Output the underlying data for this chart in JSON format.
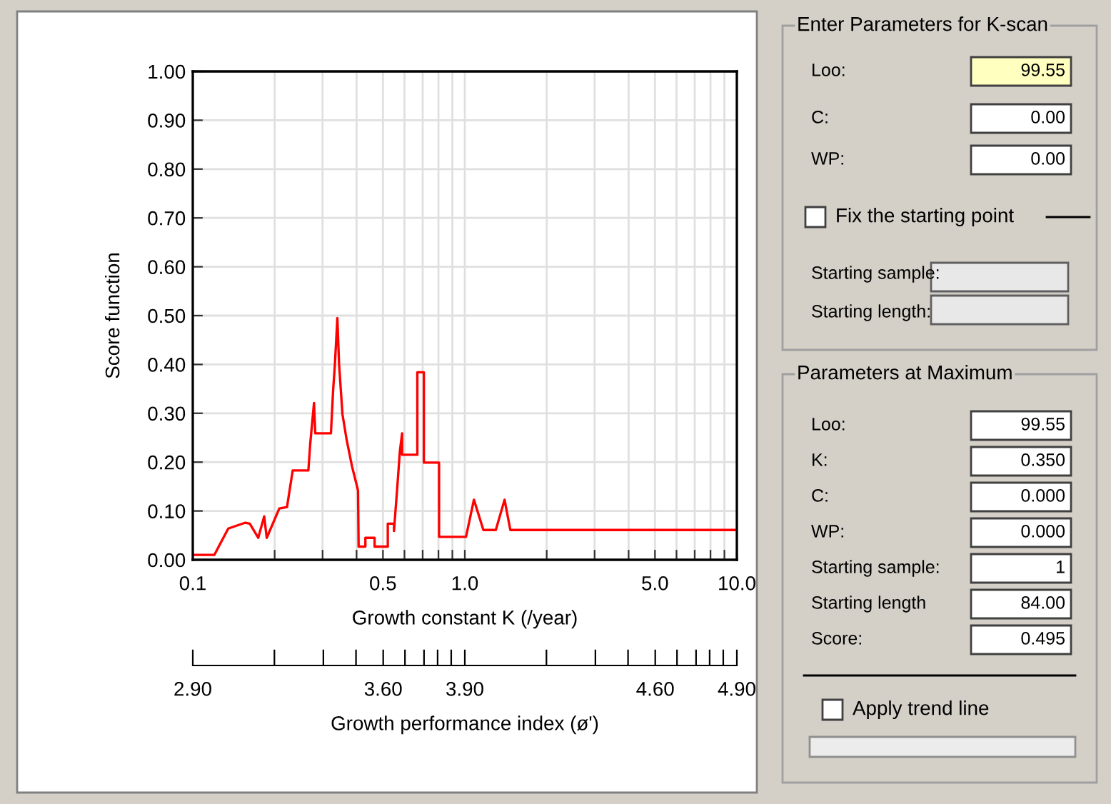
{
  "chart_data": [
    {
      "type": "line",
      "xlabel": "Growth constant K (/year)",
      "ylabel": "Score function",
      "x2label": "Growth performance index (ø')",
      "log": "x",
      "grid": true,
      "legend": false,
      "marker": "none",
      "line_style": "solid",
      "xlim": [
        0.1,
        10
      ],
      "xticks": [
        {
          "value": 0.1,
          "label": "0.1"
        },
        {
          "value": 0.2,
          "label": null
        },
        {
          "value": 0.3,
          "label": null
        },
        {
          "value": 0.4,
          "label": null
        },
        {
          "value": 0.5,
          "label": "0.5"
        },
        {
          "value": 0.6,
          "label": null
        },
        {
          "value": 0.7,
          "label": null
        },
        {
          "value": 0.8,
          "label": null
        },
        {
          "value": 0.9,
          "label": null
        },
        {
          "value": 1,
          "label": "1.0"
        },
        {
          "value": 2,
          "label": null
        },
        {
          "value": 3,
          "label": null
        },
        {
          "value": 4,
          "label": null
        },
        {
          "value": 5,
          "label": "5.0"
        },
        {
          "value": 6,
          "label": null
        },
        {
          "value": 7,
          "label": null
        },
        {
          "value": 8,
          "label": null
        },
        {
          "value": 9,
          "label": null
        },
        {
          "value": 10,
          "label": "10.0"
        }
      ],
      "x2lim": [
        2.9,
        4.9
      ],
      "x2ticks": [
        {
          "value": 2.9,
          "label": "2.90"
        },
        {
          "value": 3.2,
          "label": null
        },
        {
          "value": 3.38,
          "label": null
        },
        {
          "value": 3.5,
          "label": null
        },
        {
          "value": 3.6,
          "label": "3.60"
        },
        {
          "value": 3.68,
          "label": null
        },
        {
          "value": 3.75,
          "label": null
        },
        {
          "value": 3.8,
          "label": null
        },
        {
          "value": 3.85,
          "label": null
        },
        {
          "value": 3.9,
          "label": "3.90"
        },
        {
          "value": 4.2,
          "label": null
        },
        {
          "value": 4.38,
          "label": null
        },
        {
          "value": 4.5,
          "label": null
        },
        {
          "value": 4.6,
          "label": "4.60"
        },
        {
          "value": 4.68,
          "label": null
        },
        {
          "value": 4.75,
          "label": null
        },
        {
          "value": 4.8,
          "label": null
        },
        {
          "value": 4.85,
          "label": null
        },
        {
          "value": 4.9,
          "label": "4.90"
        }
      ],
      "ylim": [
        0,
        1
      ],
      "yticks": [
        {
          "value": 0,
          "label": "0.00"
        },
        {
          "value": 0.1,
          "label": "0.10"
        },
        {
          "value": 0.2,
          "label": "0.20"
        },
        {
          "value": 0.3,
          "label": "0.30"
        },
        {
          "value": 0.4,
          "label": "0.40"
        },
        {
          "value": 0.5,
          "label": "0.50"
        },
        {
          "value": 0.6,
          "label": "0.60"
        },
        {
          "value": 0.7,
          "label": "0.70"
        },
        {
          "value": 0.8,
          "label": "0.80"
        },
        {
          "value": 0.9,
          "label": "0.90"
        },
        {
          "value": 1,
          "label": "1.00"
        }
      ],
      "series": [
        {
          "color": "#ff0000",
          "x": [
            0.1,
            0.12,
            0.135,
            0.156,
            0.162,
            0.174,
            0.183,
            0.187,
            0.208,
            0.222,
            0.233,
            0.266,
            0.27,
            0.279,
            0.282,
            0.322,
            0.328,
            0.333,
            0.34,
            0.345,
            0.355,
            0.368,
            0.385,
            0.405,
            0.407,
            0.431,
            0.431,
            0.466,
            0.466,
            0.521,
            0.521,
            0.549,
            0.549,
            0.566,
            0.577,
            0.588,
            0.588,
            0.669,
            0.669,
            0.707,
            0.707,
            0.804,
            0.804,
            1.01,
            1.08,
            1.17,
            1.3,
            1.4,
            1.47,
            10
          ],
          "values": [
            0.01,
            0.01,
            0.064,
            0.076,
            0.074,
            0.045,
            0.089,
            0.045,
            0.105,
            0.108,
            0.183,
            0.183,
            0.235,
            0.321,
            0.259,
            0.259,
            0.347,
            0.4,
            0.495,
            0.4,
            0.298,
            0.245,
            0.191,
            0.142,
            0.027,
            0.027,
            0.045,
            0.045,
            0.027,
            0.027,
            0.074,
            0.074,
            0.059,
            0.157,
            0.222,
            0.259,
            0.215,
            0.215,
            0.384,
            0.384,
            0.199,
            0.199,
            0.047,
            0.047,
            0.123,
            0.061,
            0.061,
            0.123,
            0.061,
            0.061
          ]
        }
      ]
    },
    {
      "type": "other",
      "annotations": [
        "Enter Parameters for K-scan",
        "Loo:",
        "99.55",
        "C:",
        "0.00",
        "WP:",
        "0.00",
        "Fix the starting point",
        "Starting sample:",
        "Starting length:",
        "Parameters at Maximum",
        "Loo:",
        "99.55",
        "K:",
        "0.350",
        "C:",
        "0.000",
        "WP:",
        "0.000",
        "Starting sample:",
        "1",
        "Starting length",
        "84.00",
        "Score:",
        "0.495",
        "Apply trend line"
      ]
    }
  ]
}
